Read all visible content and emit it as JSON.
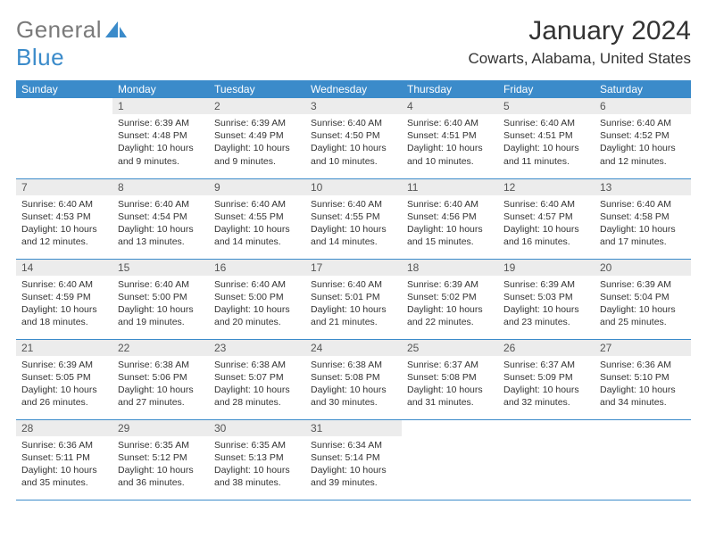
{
  "brand": {
    "part1": "General",
    "part2": "Blue"
  },
  "title": "January 2024",
  "location": "Cowarts, Alabama, United States",
  "colors": {
    "accent": "#3b8bca",
    "header_text": "#ffffff",
    "daynum_bg": "#ececec",
    "body_text": "#333333",
    "logo_gray": "#7a7a7a"
  },
  "weekdays": [
    "Sunday",
    "Monday",
    "Tuesday",
    "Wednesday",
    "Thursday",
    "Friday",
    "Saturday"
  ],
  "weeks": [
    [
      null,
      {
        "n": "1",
        "sr": "6:39 AM",
        "ss": "4:48 PM",
        "dl": "10 hours and 9 minutes."
      },
      {
        "n": "2",
        "sr": "6:39 AM",
        "ss": "4:49 PM",
        "dl": "10 hours and 9 minutes."
      },
      {
        "n": "3",
        "sr": "6:40 AM",
        "ss": "4:50 PM",
        "dl": "10 hours and 10 minutes."
      },
      {
        "n": "4",
        "sr": "6:40 AM",
        "ss": "4:51 PM",
        "dl": "10 hours and 10 minutes."
      },
      {
        "n": "5",
        "sr": "6:40 AM",
        "ss": "4:51 PM",
        "dl": "10 hours and 11 minutes."
      },
      {
        "n": "6",
        "sr": "6:40 AM",
        "ss": "4:52 PM",
        "dl": "10 hours and 12 minutes."
      }
    ],
    [
      {
        "n": "7",
        "sr": "6:40 AM",
        "ss": "4:53 PM",
        "dl": "10 hours and 12 minutes."
      },
      {
        "n": "8",
        "sr": "6:40 AM",
        "ss": "4:54 PM",
        "dl": "10 hours and 13 minutes."
      },
      {
        "n": "9",
        "sr": "6:40 AM",
        "ss": "4:55 PM",
        "dl": "10 hours and 14 minutes."
      },
      {
        "n": "10",
        "sr": "6:40 AM",
        "ss": "4:55 PM",
        "dl": "10 hours and 14 minutes."
      },
      {
        "n": "11",
        "sr": "6:40 AM",
        "ss": "4:56 PM",
        "dl": "10 hours and 15 minutes."
      },
      {
        "n": "12",
        "sr": "6:40 AM",
        "ss": "4:57 PM",
        "dl": "10 hours and 16 minutes."
      },
      {
        "n": "13",
        "sr": "6:40 AM",
        "ss": "4:58 PM",
        "dl": "10 hours and 17 minutes."
      }
    ],
    [
      {
        "n": "14",
        "sr": "6:40 AM",
        "ss": "4:59 PM",
        "dl": "10 hours and 18 minutes."
      },
      {
        "n": "15",
        "sr": "6:40 AM",
        "ss": "5:00 PM",
        "dl": "10 hours and 19 minutes."
      },
      {
        "n": "16",
        "sr": "6:40 AM",
        "ss": "5:00 PM",
        "dl": "10 hours and 20 minutes."
      },
      {
        "n": "17",
        "sr": "6:40 AM",
        "ss": "5:01 PM",
        "dl": "10 hours and 21 minutes."
      },
      {
        "n": "18",
        "sr": "6:39 AM",
        "ss": "5:02 PM",
        "dl": "10 hours and 22 minutes."
      },
      {
        "n": "19",
        "sr": "6:39 AM",
        "ss": "5:03 PM",
        "dl": "10 hours and 23 minutes."
      },
      {
        "n": "20",
        "sr": "6:39 AM",
        "ss": "5:04 PM",
        "dl": "10 hours and 25 minutes."
      }
    ],
    [
      {
        "n": "21",
        "sr": "6:39 AM",
        "ss": "5:05 PM",
        "dl": "10 hours and 26 minutes."
      },
      {
        "n": "22",
        "sr": "6:38 AM",
        "ss": "5:06 PM",
        "dl": "10 hours and 27 minutes."
      },
      {
        "n": "23",
        "sr": "6:38 AM",
        "ss": "5:07 PM",
        "dl": "10 hours and 28 minutes."
      },
      {
        "n": "24",
        "sr": "6:38 AM",
        "ss": "5:08 PM",
        "dl": "10 hours and 30 minutes."
      },
      {
        "n": "25",
        "sr": "6:37 AM",
        "ss": "5:08 PM",
        "dl": "10 hours and 31 minutes."
      },
      {
        "n": "26",
        "sr": "6:37 AM",
        "ss": "5:09 PM",
        "dl": "10 hours and 32 minutes."
      },
      {
        "n": "27",
        "sr": "6:36 AM",
        "ss": "5:10 PM",
        "dl": "10 hours and 34 minutes."
      }
    ],
    [
      {
        "n": "28",
        "sr": "6:36 AM",
        "ss": "5:11 PM",
        "dl": "10 hours and 35 minutes."
      },
      {
        "n": "29",
        "sr": "6:35 AM",
        "ss": "5:12 PM",
        "dl": "10 hours and 36 minutes."
      },
      {
        "n": "30",
        "sr": "6:35 AM",
        "ss": "5:13 PM",
        "dl": "10 hours and 38 minutes."
      },
      {
        "n": "31",
        "sr": "6:34 AM",
        "ss": "5:14 PM",
        "dl": "10 hours and 39 minutes."
      },
      null,
      null,
      null
    ]
  ],
  "labels": {
    "sunrise": "Sunrise: ",
    "sunset": "Sunset: ",
    "daylight": "Daylight: "
  }
}
